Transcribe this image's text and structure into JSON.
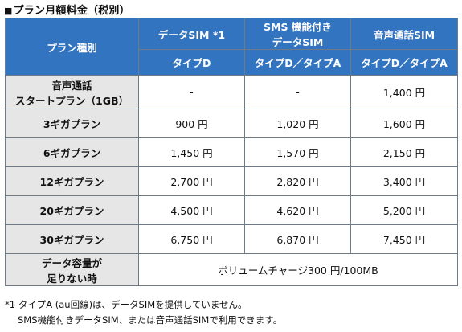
{
  "heading": {
    "marker": "■",
    "title": "プラン月額料金（税別）"
  },
  "table": {
    "plan_type_header": "プラン種別",
    "columns": [
      {
        "name_line1": "データSIM *1",
        "name_line2": "",
        "type": "タイプD"
      },
      {
        "name_line1": "SMS 機能付き",
        "name_line2": "データSIM",
        "type": "タイプD／タイプA"
      },
      {
        "name_line1": "音声通話SIM",
        "name_line2": "",
        "type": "タイプD／タイプA"
      }
    ],
    "rows": [
      {
        "label_line1": "音声通話",
        "label_line2": "スタートプラン（1GB）",
        "values": [
          "-",
          "-",
          "1,400 円"
        ]
      },
      {
        "label_line1": "3ギガプラン",
        "label_line2": "",
        "values": [
          "900 円",
          "1,020 円",
          "1,600 円"
        ]
      },
      {
        "label_line1": "6ギガプラン",
        "label_line2": "",
        "values": [
          "1,450 円",
          "1,570 円",
          "2,150 円"
        ]
      },
      {
        "label_line1": "12ギガプラン",
        "label_line2": "",
        "values": [
          "2,700 円",
          "2,820 円",
          "3,400 円"
        ]
      },
      {
        "label_line1": "20ギガプラン",
        "label_line2": "",
        "values": [
          "4,500 円",
          "4,620 円",
          "5,200 円"
        ]
      },
      {
        "label_line1": "30ギガプラン",
        "label_line2": "",
        "values": [
          "6,750 円",
          "6,870 円",
          "7,450 円"
        ]
      }
    ],
    "shortage_row": {
      "label_line1": "データ容量が",
      "label_line2": "足りない時",
      "value": "ボリュームチャージ300 円/100MB"
    }
  },
  "footnotes": {
    "line1": "*1 タイプA (au回線)は、データSIMを提供していません。",
    "line2": "SMS機能付きデータSIM、または音声通話SIMで利用できます。"
  },
  "colors": {
    "header_blue": "#3374c0",
    "label_gray": "#e6e6e6",
    "border": "#6e7a86"
  }
}
